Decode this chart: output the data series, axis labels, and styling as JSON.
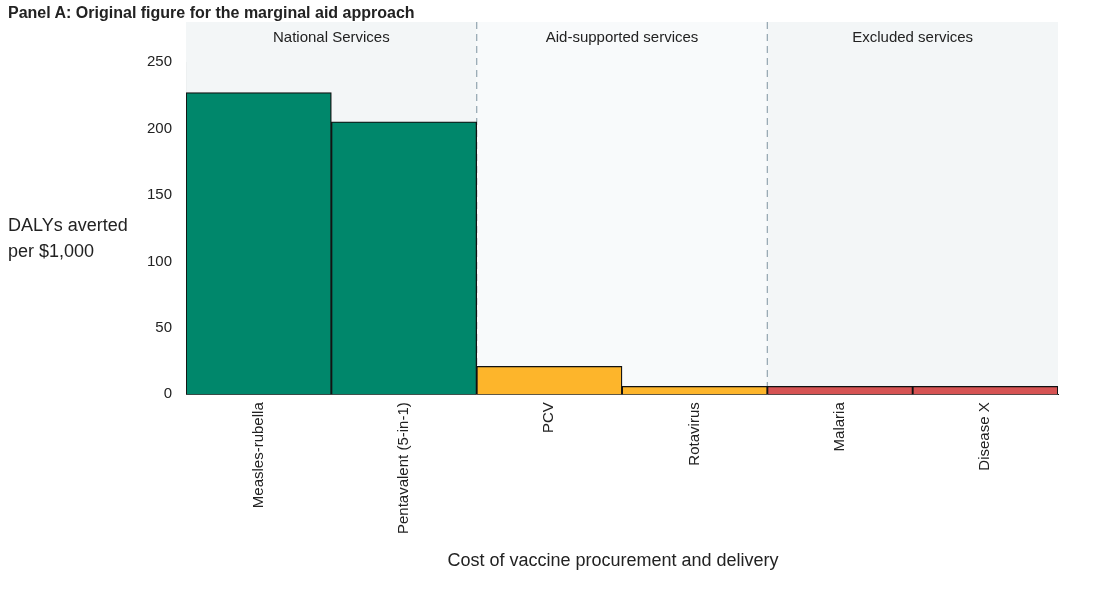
{
  "chart_data": {
    "type": "bar",
    "title": "Panel A: Original figure for the marginal aid approach",
    "xlabel": "Cost of vaccine procurement and delivery",
    "ylabel": "DALYs averted per $1,000",
    "categories": [
      "Measles-rubella",
      "Pentavalent (5-in-1)",
      "PCV",
      "Rotavirus",
      "Malaria",
      "Disease X"
    ],
    "values": [
      227,
      205,
      21,
      6,
      6,
      6
    ],
    "colors": [
      "#00876b",
      "#00876b",
      "#fdb52b",
      "#fdb52b",
      "#d65353",
      "#d65353"
    ],
    "ylim": [
      0,
      250
    ],
    "yticks": [
      0,
      50,
      100,
      150,
      200,
      250
    ],
    "grid": false,
    "legend": false,
    "bands": [
      {
        "axis": "x",
        "from": "Measles-rubella",
        "to": "Pentavalent (5-in-1)",
        "label": "National Services",
        "color": "#f3f6f7"
      },
      {
        "axis": "x",
        "from": "PCV",
        "to": "Rotavirus",
        "label": "Aid-supported services",
        "color": "#f8fafb"
      },
      {
        "axis": "x",
        "from": "Malaria",
        "to": "Disease X",
        "label": "Excluded services",
        "color": "#f3f6f7"
      }
    ]
  }
}
